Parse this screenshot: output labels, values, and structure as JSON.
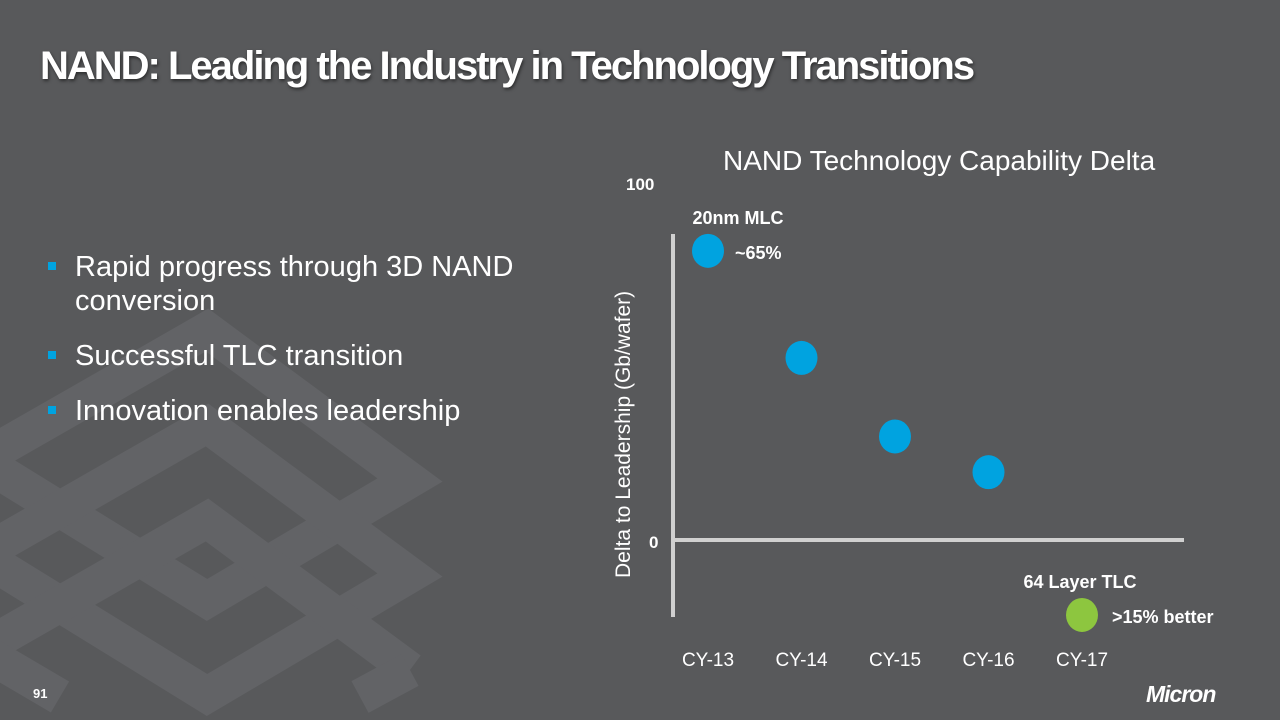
{
  "slide": {
    "title": "NAND: Leading the Industry in Technology Transitions",
    "bullets": [
      "Rapid progress through 3D NAND conversion",
      "Successful TLC transition",
      "Innovation enables leadership"
    ],
    "page_number": "91",
    "logo_text": "Micron",
    "colors": {
      "background": "#58595b",
      "bullet": "#00a3e0"
    }
  },
  "chart_data": {
    "type": "scatter",
    "title": "NAND Technology Capability Delta",
    "ylabel": "Delta to Leadership (Gb/wafer)",
    "xlabel": "",
    "categories": [
      "CY-13",
      "CY-14",
      "CY-15",
      "CY-16",
      "CY-17"
    ],
    "values": [
      81,
      51,
      29,
      19,
      -21
    ],
    "point_colors": [
      "#00a3e0",
      "#00a3e0",
      "#00a3e0",
      "#00a3e0",
      "#8dc63f"
    ],
    "y_tick_labels": [
      "100",
      "0"
    ],
    "y_ticks": [
      100,
      0
    ],
    "ylim": [
      -22,
      100
    ],
    "grid": false,
    "annotations": [
      {
        "category": "CY-13",
        "label": "20nm MLC",
        "value_label": "~65%"
      },
      {
        "category": "CY-17",
        "label": "64 Layer TLC",
        "value_label": ">15% better"
      }
    ]
  }
}
